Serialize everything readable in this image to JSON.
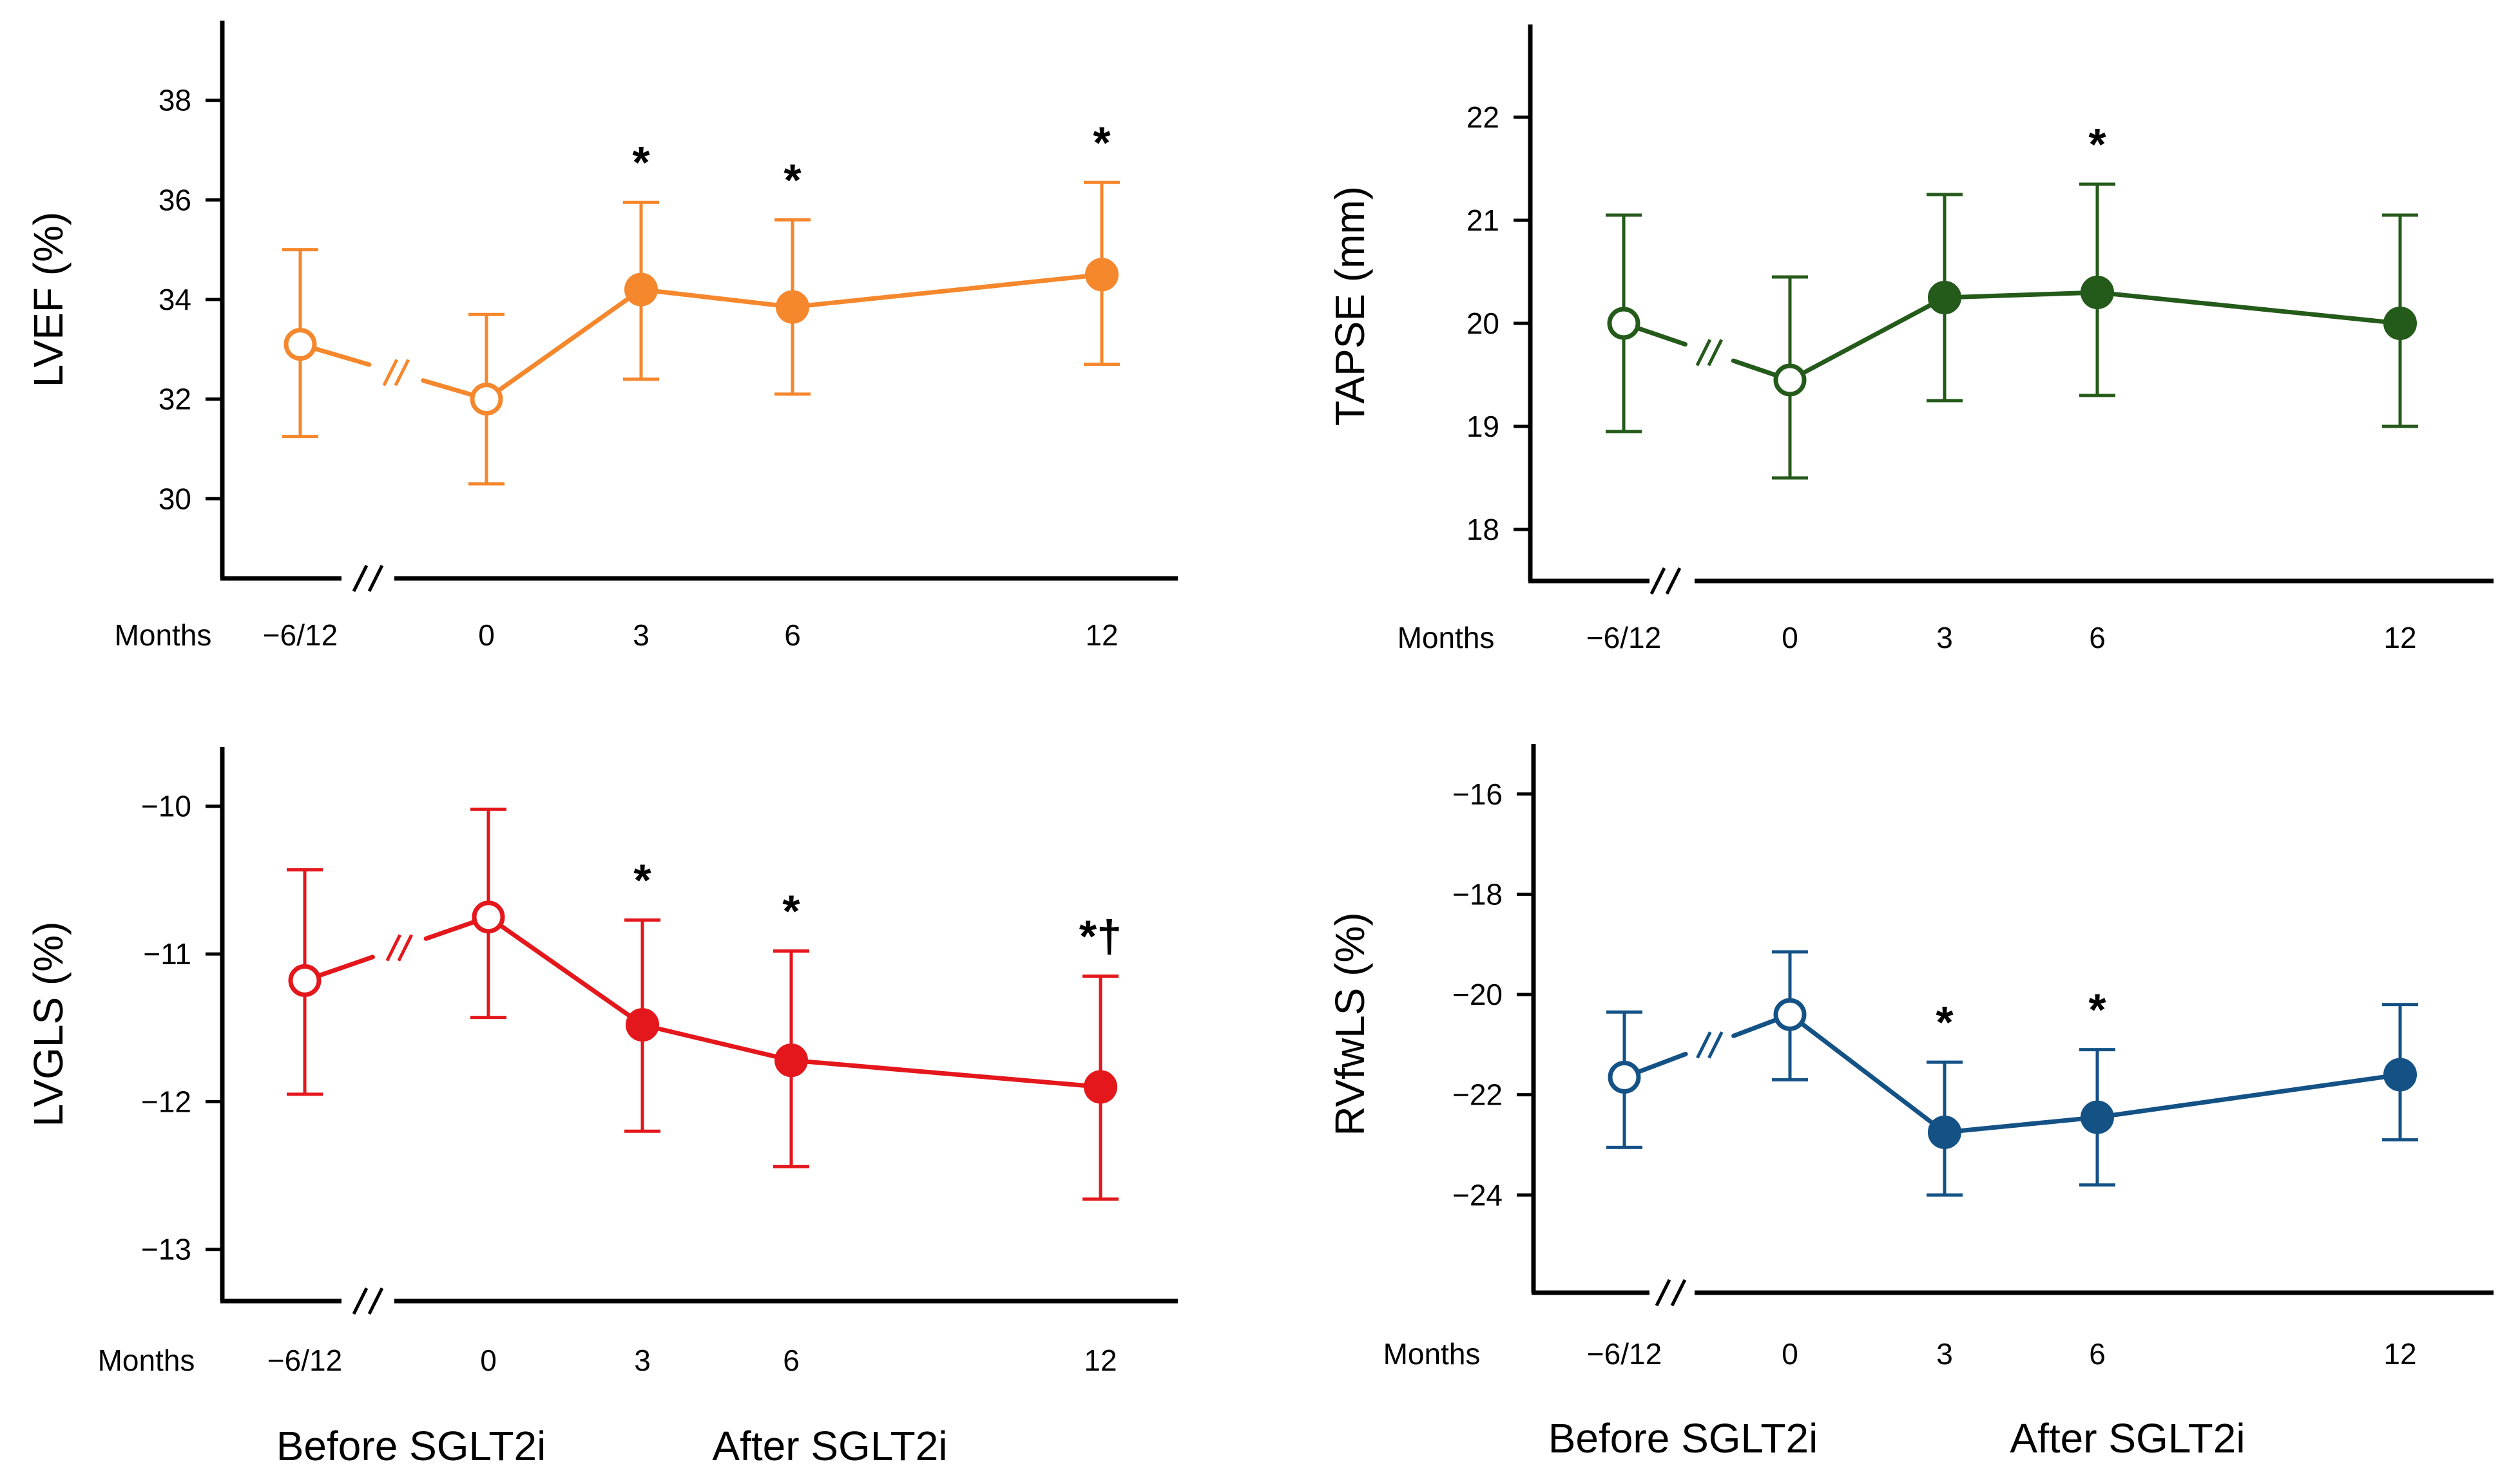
{
  "chart_data": [
    {
      "type": "line",
      "ylabel": "LVEF (%)",
      "color": "#F5872D",
      "x_axis_name": "Months",
      "x_categories": [
        "−6/12",
        "0",
        "3",
        "6",
        "12"
      ],
      "y_ticks": [
        "30",
        "32",
        "34",
        "36",
        "38"
      ],
      "ylim": [
        28.4,
        39.6
      ],
      "series": [
        {
          "name": "LVEF",
          "values": [
            33.1,
            32.0,
            34.2,
            33.85,
            34.5
          ],
          "err_upper": [
            35.0,
            33.7,
            35.95,
            35.6,
            36.35
          ],
          "err_lower": [
            31.25,
            30.3,
            32.4,
            32.1,
            32.7
          ],
          "filled": [
            false,
            false,
            true,
            true,
            true
          ]
        }
      ],
      "annotations": [
        "",
        "",
        "*",
        "*",
        "*"
      ]
    },
    {
      "type": "line",
      "ylabel": "TAPSE (mm)",
      "color": "#245A1A",
      "x_axis_name": "Months",
      "x_categories": [
        "−6/12",
        "0",
        "3",
        "6",
        "12"
      ],
      "y_ticks": [
        "18",
        "19",
        "20",
        "21",
        "22"
      ],
      "ylim": [
        17.5,
        22.9
      ],
      "series": [
        {
          "name": "TAPSE",
          "values": [
            20.0,
            19.45,
            20.25,
            20.3,
            20.0
          ],
          "err_upper": [
            21.05,
            20.45,
            21.25,
            21.35,
            21.05
          ],
          "err_lower": [
            18.95,
            18.5,
            19.25,
            19.3,
            19.0
          ],
          "filled": [
            false,
            false,
            true,
            true,
            true
          ]
        }
      ],
      "annotations": [
        "",
        "",
        "",
        "*",
        ""
      ]
    },
    {
      "type": "line",
      "ylabel": "LVGLS (%)",
      "color": "#E4171C",
      "x_axis_name": "Months",
      "x_categories": [
        "−6/12",
        "0",
        "3",
        "6",
        "12"
      ],
      "y_ticks": [
        "−10",
        "−11",
        "−12",
        "−13"
      ],
      "ylim": [
        -13.35,
        -9.6
      ],
      "series": [
        {
          "name": "LVGLS",
          "values": [
            -11.18,
            -10.75,
            -11.48,
            -11.72,
            -11.9
          ],
          "err_upper": [
            -10.43,
            -10.02,
            -10.77,
            -10.98,
            -11.15
          ],
          "err_lower": [
            -11.95,
            -11.43,
            -12.2,
            -12.44,
            -12.66
          ],
          "filled": [
            false,
            false,
            true,
            true,
            true
          ]
        }
      ],
      "annotations": [
        "",
        "",
        "*",
        "*",
        "*†"
      ]
    },
    {
      "type": "line",
      "ylabel": "RVfwLS (%)",
      "color": "#145286",
      "x_axis_name": "Months",
      "x_categories": [
        "−6/12",
        "0",
        "3",
        "6",
        "12"
      ],
      "y_ticks": [
        "−16",
        "−18",
        "−20",
        "−22",
        "−24"
      ],
      "ylim": [
        -25.95,
        -15.0
      ],
      "series": [
        {
          "name": "RVfwLS",
          "values": [
            -21.65,
            -20.4,
            -22.75,
            -22.45,
            -21.6
          ],
          "err_upper": [
            -20.35,
            -19.15,
            -21.35,
            -21.1,
            -20.2
          ],
          "err_lower": [
            -23.05,
            -21.7,
            -24.0,
            -23.8,
            -22.9
          ],
          "filled": [
            false,
            false,
            true,
            true,
            true
          ]
        }
      ],
      "annotations": [
        "",
        "",
        "*",
        "*",
        ""
      ]
    }
  ],
  "period_labels": {
    "left_before": "Before SGLT2i",
    "left_after": "After SGLT2i",
    "right_before": "Before SGLT2i",
    "right_after": "After SGLT2i"
  }
}
